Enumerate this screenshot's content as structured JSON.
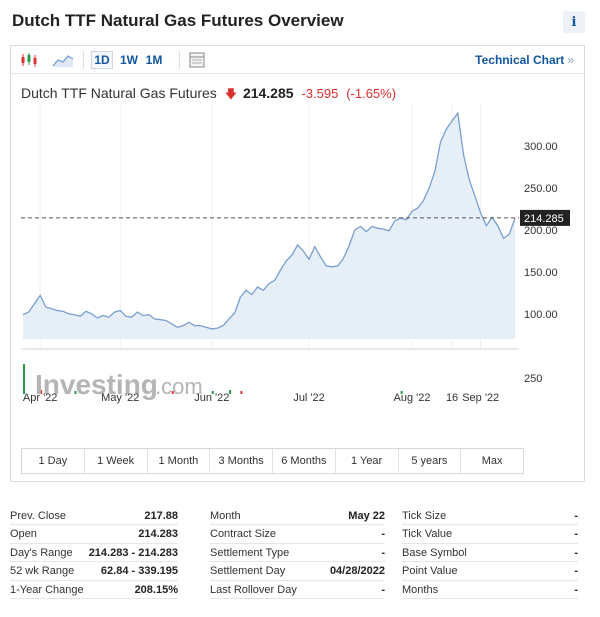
{
  "header": {
    "title": "Dutch TTF Natural Gas Futures Overview",
    "info_glyph": "i"
  },
  "toolbar": {
    "timeframes": [
      "1D",
      "1W",
      "1M"
    ],
    "active_timeframe": "1D",
    "technical_chart_label": "Technical Chart",
    "technical_chart_arrow": "»"
  },
  "quote": {
    "name": "Dutch TTF Natural Gas Futures",
    "direction_glyph": "🡇",
    "price": "214.285",
    "change": "-3.595",
    "change_pct": "(-1.65%)"
  },
  "chart_data": {
    "type": "area",
    "x_tick_labels": [
      "Apr '22",
      "May '22",
      "Jun '22",
      "Jul '22",
      "Aug '22",
      "16",
      "Sep '22"
    ],
    "y_tick_labels": [
      "100.00",
      "150.00",
      "200.00",
      "250.00",
      "300.00"
    ],
    "volume_tick_label": "250",
    "current_price_label": "214.285",
    "current_price": 214.285,
    "ylim": [
      70,
      350
    ],
    "x": [
      0,
      2,
      4,
      6,
      8,
      10,
      12,
      14,
      16,
      18,
      20,
      22,
      24,
      26,
      28,
      30,
      32,
      34,
      36,
      38,
      40,
      42,
      44,
      46,
      48,
      50,
      52,
      54,
      56,
      58,
      60,
      62,
      64,
      66,
      68,
      70,
      72,
      74,
      76,
      78,
      80,
      82,
      84,
      86,
      88,
      90,
      92,
      94,
      96,
      98,
      100,
      102,
      104,
      106,
      108,
      110,
      112,
      114,
      116,
      118,
      120,
      122,
      124,
      126,
      128,
      130,
      132,
      134,
      136,
      138,
      140,
      142,
      144,
      146,
      148,
      150,
      152,
      154,
      156,
      158,
      160,
      162,
      164,
      166,
      168,
      170,
      172
    ],
    "values": [
      99,
      102,
      112,
      122,
      108,
      106,
      104,
      103,
      100,
      99,
      97,
      103,
      100,
      95,
      98,
      96,
      102,
      104,
      97,
      96,
      102,
      98,
      99,
      94,
      93,
      92,
      88,
      84,
      86,
      90,
      86,
      86,
      84,
      82,
      83,
      86,
      94,
      101,
      120,
      128,
      123,
      132,
      128,
      136,
      140,
      152,
      163,
      170,
      182,
      175,
      165,
      180,
      168,
      157,
      156,
      157,
      166,
      181,
      200,
      204,
      198,
      204,
      202,
      201,
      199,
      211,
      214,
      212,
      222,
      226,
      235,
      250,
      270,
      305,
      320,
      330,
      339,
      290,
      260,
      240,
      220,
      205,
      215,
      205,
      190,
      195,
      214
    ],
    "month_start_index": [
      3,
      17,
      33,
      50,
      68,
      75,
      80
    ]
  },
  "watermark": {
    "brand": "Investing",
    "suffix": ".com"
  },
  "ranges": [
    "1 Day",
    "1 Week",
    "1 Month",
    "3 Months",
    "6 Months",
    "1 Year",
    "5 years",
    "Max"
  ],
  "stats": {
    "col1": [
      {
        "label": "Prev. Close",
        "value": "217.88"
      },
      {
        "label": "Open",
        "value": "214.283"
      },
      {
        "label": "Day's Range",
        "value": "214.283 - 214.283"
      },
      {
        "label": "52 wk Range",
        "value": "62.84 - 339.195"
      },
      {
        "label": "1-Year Change",
        "value": "208.15%"
      }
    ],
    "col2": [
      {
        "label": "Month",
        "value": "May 22"
      },
      {
        "label": "Contract Size",
        "value": "-"
      },
      {
        "label": "Settlement Type",
        "value": "-"
      },
      {
        "label": "Settlement Day",
        "value": "04/28/2022"
      },
      {
        "label": "Last Rollover Day",
        "value": "-"
      }
    ],
    "col3": [
      {
        "label": "Tick Size",
        "value": "-"
      },
      {
        "label": "Tick Value",
        "value": "-"
      },
      {
        "label": "Base Symbol",
        "value": "-"
      },
      {
        "label": "Point Value",
        "value": "-"
      },
      {
        "label": "Months",
        "value": "-"
      }
    ]
  },
  "colors": {
    "line": "#7a9fcf",
    "area": "#e6eef8",
    "negative": "#dd2e2e",
    "link": "#1256a0",
    "price_badge": "#222222"
  }
}
